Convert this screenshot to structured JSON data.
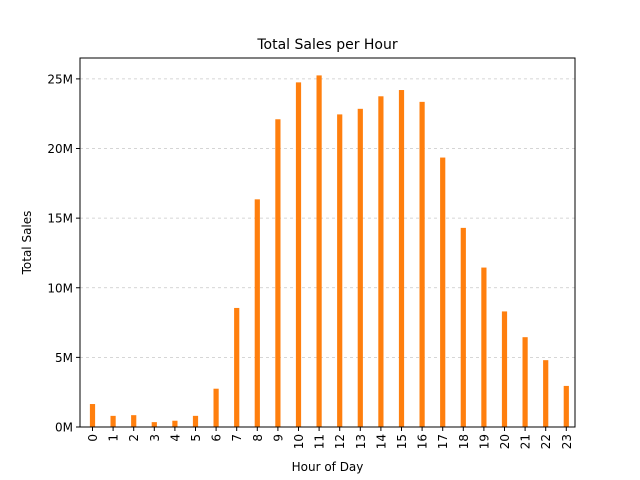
{
  "chart_data": {
    "type": "bar",
    "title": "Total Sales per Hour",
    "xlabel": "Hour of Day",
    "ylabel": "Total Sales",
    "categories": [
      "0",
      "1",
      "2",
      "3",
      "4",
      "5",
      "6",
      "7",
      "8",
      "9",
      "10",
      "11",
      "12",
      "13",
      "14",
      "15",
      "16",
      "17",
      "18",
      "19",
      "20",
      "21",
      "22",
      "23"
    ],
    "values": [
      1650000,
      800000,
      850000,
      350000,
      450000,
      800000,
      2750000,
      8550000,
      16350000,
      22100000,
      24750000,
      25250000,
      22450000,
      22850000,
      23750000,
      24200000,
      23350000,
      19350000,
      14300000,
      11450000,
      8300000,
      6450000,
      4800000,
      2950000
    ],
    "ylim": [
      0,
      26500000
    ],
    "yticks": [
      0,
      5000000,
      10000000,
      15000000,
      20000000,
      25000000
    ],
    "ytick_labels": [
      "0M",
      "5M",
      "10M",
      "15M",
      "20M",
      "25M"
    ],
    "bar_color": "#ff7f0e",
    "grid": "y-dashed",
    "legend": "none"
  }
}
